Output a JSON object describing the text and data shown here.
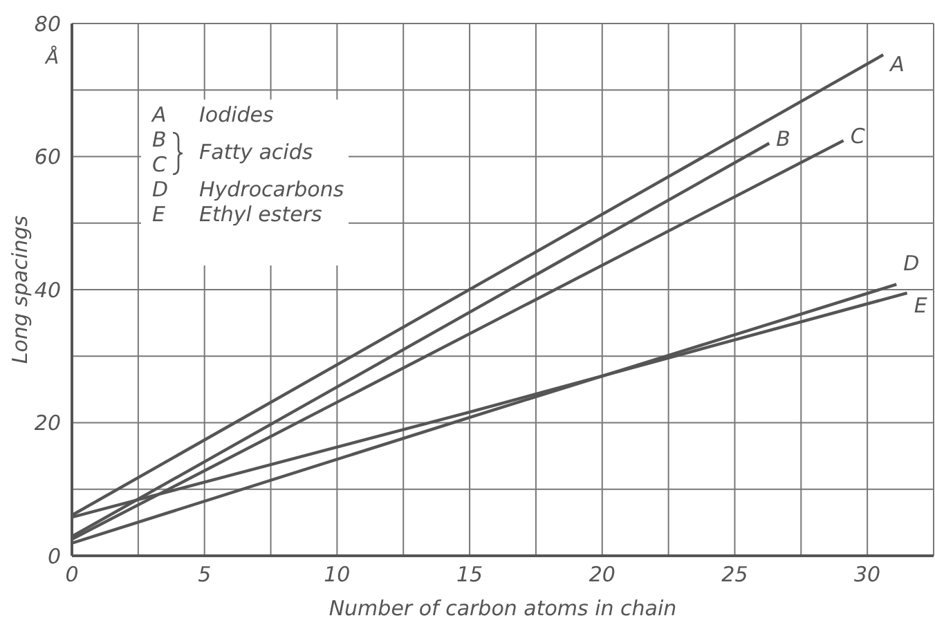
{
  "chart_data": {
    "type": "line",
    "xlabel": "Number of carbon atoms in chain",
    "ylabel": "Long spacings",
    "xlim": [
      0,
      32.5
    ],
    "xticks": [
      0,
      {
        "value": 2.5,
        "label": null
      },
      5,
      {
        "value": 7.5,
        "label": null
      },
      10,
      {
        "value": 12.5,
        "label": null
      },
      15,
      {
        "value": 17.5,
        "label": null
      },
      20,
      {
        "value": 22.5,
        "label": null
      },
      25,
      {
        "value": 27.5,
        "label": null
      },
      30
    ],
    "ylim": [
      0,
      80
    ],
    "yticks": [
      0,
      {
        "value": 10,
        "label": null
      },
      20,
      {
        "value": 30,
        "label": null
      },
      40,
      {
        "value": 50,
        "label": null
      },
      60,
      {
        "value": 70,
        "label": null
      },
      80
    ],
    "grid": true,
    "marker": "none",
    "line_style": "solid",
    "series": [
      {
        "name": "A",
        "color": "#555555",
        "x": [
          0,
          30.6
        ],
        "values": [
          6.1,
          75.3
        ]
      },
      {
        "name": "B",
        "color": "#555555",
        "x": [
          0,
          26.3
        ],
        "values": [
          2.9,
          62
        ]
      },
      {
        "name": "C",
        "color": "#555555",
        "x": [
          0,
          29.1
        ],
        "values": [
          2.5,
          62.4
        ]
      },
      {
        "name": "D",
        "color": "#555555",
        "x": [
          0,
          15,
          31.1
        ],
        "values": [
          1.9,
          20.8,
          40.8
        ]
      },
      {
        "name": "E",
        "color": "#555555",
        "x": [
          0,
          15,
          31.5
        ],
        "values": [
          5.8,
          21.6,
          39.5
        ]
      }
    ],
    "annotations": [
      "Å",
      "A",
      "Iodides",
      "B",
      "C",
      "Fatty acids",
      "D",
      "Hydrocarbons",
      "E",
      "Ethyl esters"
    ]
  }
}
